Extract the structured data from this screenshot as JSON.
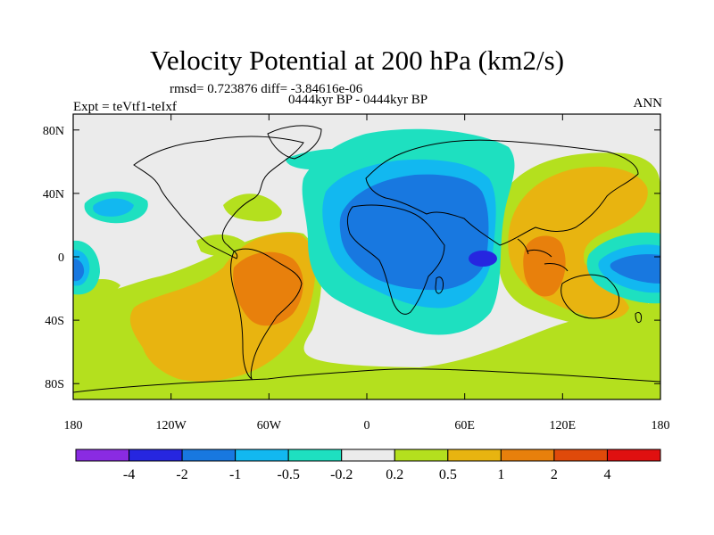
{
  "title": "Velocity Potential at 200 hPa (km2/s)",
  "stats_line": "rmsd= 0.723876 diff= -3.84616e-06",
  "experiment_line": "Expt = teVtf1-teIxf",
  "period_line": "0444kyr BP - 0444kyr BP",
  "season": "ANN",
  "map": {
    "projection": "cylindrical-equidistant",
    "lon_range": [
      -180,
      180
    ],
    "lat_range": [
      -90,
      90
    ],
    "lon_ticks": [
      {
        "value": -180,
        "label": "180"
      },
      {
        "value": -120,
        "label": "120W"
      },
      {
        "value": -60,
        "label": "60W"
      },
      {
        "value": 0,
        "label": "0"
      },
      {
        "value": 60,
        "label": "60E"
      },
      {
        "value": 120,
        "label": "120E"
      },
      {
        "value": 180,
        "label": "180"
      }
    ],
    "lat_ticks": [
      {
        "value": 80,
        "label": "80N"
      },
      {
        "value": 40,
        "label": "40N"
      },
      {
        "value": 0,
        "label": "0"
      },
      {
        "value": -40,
        "label": "40S"
      },
      {
        "value": -80,
        "label": "80S"
      }
    ]
  },
  "colorbar": {
    "colors": [
      "#8a2be2",
      "#2626e0",
      "#1878e0",
      "#12b8f0",
      "#1ee0c0",
      "#ebebeb",
      "#b4e01e",
      "#e8b410",
      "#e8800c",
      "#e04a0a",
      "#e01010"
    ],
    "labels": [
      "-4",
      "-2",
      "-1",
      "-0.5",
      "-0.2",
      "0.2",
      "0.5",
      "1",
      "2",
      "4"
    ]
  }
}
